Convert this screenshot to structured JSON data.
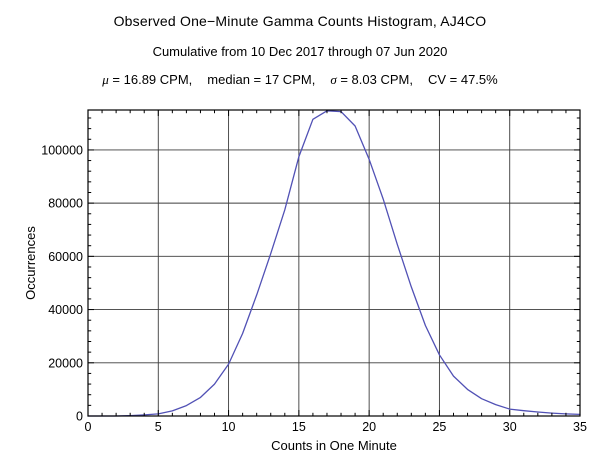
{
  "header": {
    "title": "Observed One−Minute Gamma Counts Histogram, AJ4CO",
    "subtitle": "Cumulative from 10 Dec 2017 through 07 Jun 2020",
    "stats_parts": [
      {
        "symbol": "μ",
        "text": " = 16.89 CPM,"
      },
      {
        "symbol": "",
        "text": "median = 17 CPM,"
      },
      {
        "symbol": "σ",
        "text": " = 8.03 CPM,"
      },
      {
        "symbol": "",
        "text": "CV = 47.5%"
      }
    ]
  },
  "chart_data": {
    "type": "line",
    "title": "Observed One−Minute Gamma Counts Histogram, AJ4CO",
    "subtitle": "Cumulative from 10 Dec 2017 through 07 Jun 2020",
    "xlabel": "Counts in One Minute",
    "ylabel": "Occurrences",
    "xlim": [
      0,
      35
    ],
    "ylim": [
      0,
      115000
    ],
    "x_major_ticks": [
      0,
      5,
      10,
      15,
      20,
      25,
      30,
      35
    ],
    "y_major_ticks": [
      0,
      20000,
      40000,
      60000,
      80000,
      100000
    ],
    "x_minor_step": 1,
    "y_minor_step": 4000,
    "grid": true,
    "frame": true,
    "line_color": "#5151b5",
    "grid_color": "#3c3c3c",
    "frame_color": "#000000",
    "x": [
      0,
      1,
      2,
      3,
      4,
      5,
      6,
      7,
      8,
      9,
      10,
      11,
      12,
      13,
      14,
      15,
      16,
      17,
      18,
      19,
      20,
      21,
      22,
      23,
      24,
      25,
      26,
      27,
      28,
      29,
      30,
      31,
      32,
      33,
      34,
      35
    ],
    "y": [
      0,
      0,
      0,
      150,
      400,
      800,
      1900,
      3900,
      7000,
      12000,
      19500,
      31000,
      45500,
      61000,
      77500,
      97500,
      111500,
      114700,
      114400,
      109000,
      96500,
      81500,
      64500,
      48500,
      34000,
      23000,
      15000,
      10000,
      6500,
      4300,
      2600,
      2000,
      1500,
      1100,
      800,
      600
    ],
    "stats": {
      "mu_cpm": 16.89,
      "median_cpm": 17,
      "sigma_cpm": 8.03,
      "cv_percent": 47.5
    }
  }
}
